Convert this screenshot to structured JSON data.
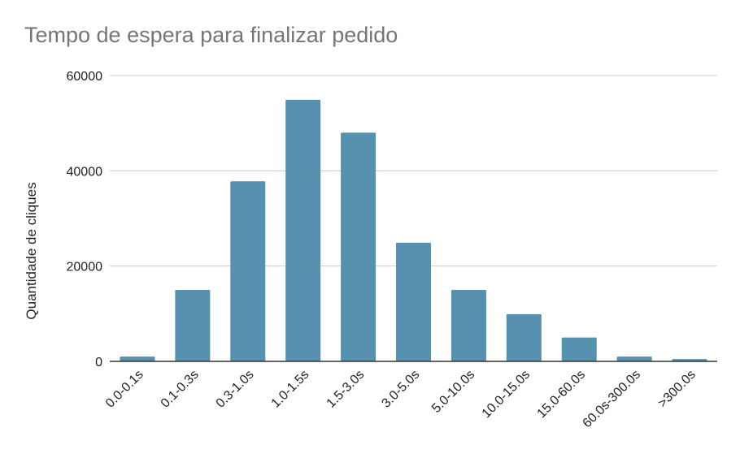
{
  "chart_data": {
    "type": "bar",
    "title": "Tempo de espera para finalizar pedido",
    "xlabel": "",
    "ylabel": "Quantidade de cliques",
    "categories": [
      "0.0-0.1s",
      "0.1-0.3s",
      "0.3-1.0s",
      "1.0-1.5s",
      "1.5-3.0s",
      "3.0-5.0s",
      "5.0-10.0s",
      "10.0-15.0s",
      "15.0-60.0s",
      "60.0s-300.0s",
      ">300.0s"
    ],
    "values": [
      1000,
      15000,
      37800,
      54900,
      48000,
      24900,
      15000,
      9900,
      5000,
      1000,
      500
    ],
    "ylim": [
      0,
      60000
    ],
    "yticks": [
      "0",
      "20000",
      "40000",
      "60000"
    ],
    "grid": true,
    "bar_color": "#5791b0",
    "gridline_color": "#cccccc",
    "axis_color": "#333333"
  }
}
